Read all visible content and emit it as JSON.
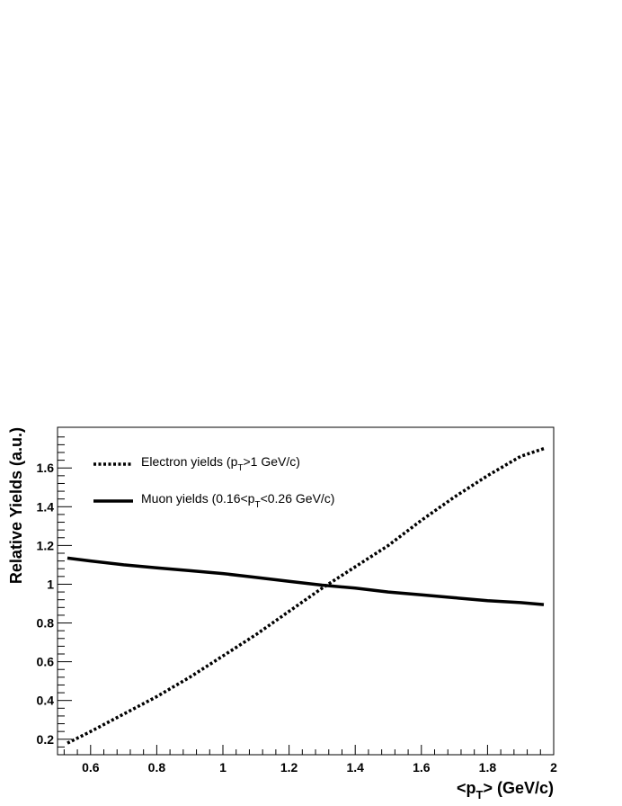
{
  "chart_data": {
    "type": "line",
    "title": "",
    "xlabel": {
      "pre": "<p",
      "sub": "T",
      "post": "> (GeV/c)"
    },
    "ylabel": "Relative Yields (a.u.)",
    "xlim": [
      0.5,
      2.0
    ],
    "ylim": [
      0.12,
      1.81
    ],
    "xticks": [
      0.6,
      0.8,
      1,
      1.2,
      1.4,
      1.6,
      1.8,
      2
    ],
    "xtick_labels": [
      "0.6",
      "0.8",
      "1",
      "1.2",
      "1.4",
      "1.6",
      "1.8",
      "2"
    ],
    "yticks": [
      0.2,
      0.4,
      0.6,
      0.8,
      1,
      1.2,
      1.4,
      1.6
    ],
    "ytick_labels": [
      "0.2",
      "0.4",
      "0.6",
      "0.8",
      "1",
      "1.2",
      "1.4",
      "1.6"
    ],
    "grid": false,
    "legend_position": "top-left",
    "series": [
      {
        "name": {
          "pre": "Electron yields (p",
          "sub": "T",
          "post": ">1 GeV/c)"
        },
        "style": "dotted",
        "x": [
          0.53,
          0.6,
          0.7,
          0.8,
          0.9,
          1.0,
          1.1,
          1.2,
          1.3,
          1.4,
          1.5,
          1.6,
          1.7,
          1.8,
          1.9,
          1.97
        ],
        "y": [
          0.18,
          0.24,
          0.33,
          0.42,
          0.52,
          0.63,
          0.74,
          0.86,
          0.98,
          1.09,
          1.2,
          1.33,
          1.45,
          1.56,
          1.66,
          1.7
        ]
      },
      {
        "name": {
          "pre": "Muon yields (0.16<p",
          "sub": "T",
          "post": "<0.26 GeV/c)"
        },
        "style": "solid",
        "x": [
          0.53,
          0.6,
          0.7,
          0.8,
          0.9,
          1.0,
          1.1,
          1.2,
          1.3,
          1.4,
          1.5,
          1.6,
          1.7,
          1.8,
          1.9,
          1.97
        ],
        "y": [
          1.135,
          1.12,
          1.1,
          1.085,
          1.07,
          1.055,
          1.035,
          1.015,
          0.995,
          0.98,
          0.96,
          0.945,
          0.93,
          0.915,
          0.905,
          0.895
        ]
      }
    ],
    "colors": {
      "line": "#000000",
      "frame": "#000000",
      "background": "#ffffff"
    }
  }
}
